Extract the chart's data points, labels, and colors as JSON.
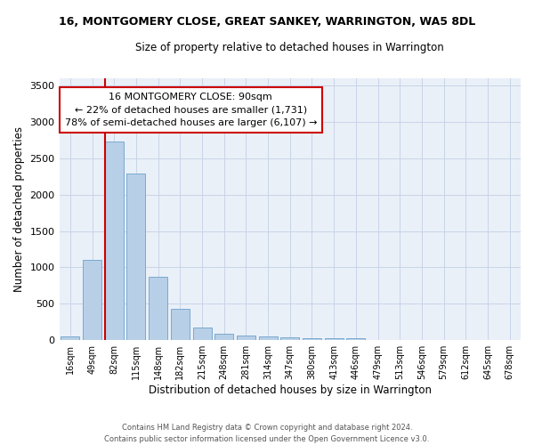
{
  "title": "16, MONTGOMERY CLOSE, GREAT SANKEY, WARRINGTON, WA5 8DL",
  "subtitle": "Size of property relative to detached houses in Warrington",
  "xlabel": "Distribution of detached houses by size in Warrington",
  "ylabel": "Number of detached properties",
  "bar_labels": [
    "16sqm",
    "49sqm",
    "82sqm",
    "115sqm",
    "148sqm",
    "182sqm",
    "215sqm",
    "248sqm",
    "281sqm",
    "314sqm",
    "347sqm",
    "380sqm",
    "413sqm",
    "446sqm",
    "479sqm",
    "513sqm",
    "546sqm",
    "579sqm",
    "612sqm",
    "645sqm",
    "678sqm"
  ],
  "bar_values": [
    50,
    1110,
    2730,
    2290,
    870,
    430,
    170,
    90,
    60,
    50,
    40,
    30,
    30,
    30,
    0,
    0,
    0,
    0,
    0,
    0,
    0
  ],
  "bar_color": "#b8cfe8",
  "bar_edge_color": "#7aaad0",
  "ylim": [
    0,
    3600
  ],
  "yticks": [
    0,
    500,
    1000,
    1500,
    2000,
    2500,
    3000,
    3500
  ],
  "grid_color": "#c8d4e8",
  "bg_color": "#eaf0f8",
  "vline_x_index": 2,
  "vline_color": "#cc0000",
  "annotation_line1": "16 MONTGOMERY CLOSE: 90sqm",
  "annotation_line2": "← 22% of detached houses are smaller (1,731)",
  "annotation_line3": "78% of semi-detached houses are larger (6,107) →",
  "annotation_box_color": "white",
  "annotation_box_edge": "#cc0000",
  "footer1": "Contains HM Land Registry data © Crown copyright and database right 2024.",
  "footer2": "Contains public sector information licensed under the Open Government Licence v3.0."
}
